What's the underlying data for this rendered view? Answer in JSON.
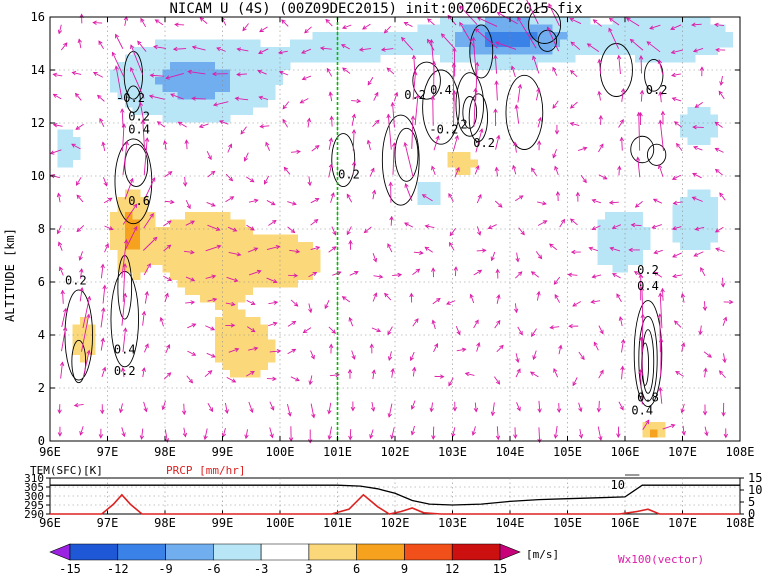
{
  "title": "NICAM U (4S) (00Z09DEC2015) init:00Z06DEC2015 fix",
  "chart_data": [
    {
      "type": "heatmap",
      "panel": "main",
      "ylabel": "ALTITUDE [km]",
      "xlim": [
        96,
        108
      ],
      "ylim": [
        0,
        16
      ],
      "xticks": [
        "96E",
        "97E",
        "98E",
        "99E",
        "100E",
        "101E",
        "102E",
        "103E",
        "104E",
        "105E",
        "106E",
        "107E",
        "108E"
      ],
      "yticks": [
        "0",
        "2",
        "4",
        "6",
        "8",
        "10",
        "12",
        "14",
        "16"
      ],
      "marker_line_lon": 101,
      "marker_line_color": "#00bb00",
      "contour_labels": [
        {
          "text": "0.2",
          "lon": 96.45,
          "alt": 5.9
        },
        {
          "text": "0.4",
          "lon": 97.3,
          "alt": 3.3
        },
        {
          "text": "0.2",
          "lon": 97.3,
          "alt": 2.5
        },
        {
          "text": "0.6",
          "lon": 97.55,
          "alt": 8.9
        },
        {
          "text": "-0.2",
          "lon": 97.4,
          "alt": 12.8
        },
        {
          "text": "0.2",
          "lon": 97.55,
          "alt": 12.1
        },
        {
          "text": "0.4",
          "lon": 97.55,
          "alt": 11.6
        },
        {
          "text": "0.2",
          "lon": 101.2,
          "alt": 9.9
        },
        {
          "text": "0.2",
          "lon": 102.35,
          "alt": 12.9
        },
        {
          "text": "0.4",
          "lon": 102.8,
          "alt": 13.1
        },
        {
          "text": "-0.2",
          "lon": 102.85,
          "alt": 11.6
        },
        {
          "text": "2",
          "lon": 103.2,
          "alt": 11.8
        },
        {
          "text": "0.2",
          "lon": 103.55,
          "alt": 11.1
        },
        {
          "text": "0.2",
          "lon": 106.55,
          "alt": 13.1
        },
        {
          "text": "0.2",
          "lon": 106.4,
          "alt": 6.3
        },
        {
          "text": "0.4",
          "lon": 106.4,
          "alt": 5.7
        },
        {
          "text": "0.8",
          "lon": 106.4,
          "alt": 1.5
        },
        {
          "text": "0.4",
          "lon": 106.3,
          "alt": 1.0
        }
      ],
      "colorbar": {
        "levels": [
          "-15",
          "-12",
          "-9",
          "-6",
          "-3",
          "3",
          "6",
          "9",
          "12",
          "15"
        ],
        "unit": "[m/s]",
        "colors": [
          "#9b22e0",
          "#1f58d6",
          "#3b82e8",
          "#70aef0",
          "#b9e6f7",
          "#ffffff",
          "#fbd97a",
          "#f6a21e",
          "#f2501a",
          "#cc1010",
          "#c8007a"
        ]
      },
      "vector_label": "Wx100(vector)",
      "vector_color": "#dd1aa8"
    },
    {
      "type": "line",
      "panel": "surface",
      "left_label": "TEM(SFC)[K]",
      "right_label": "PRCP [mm/hr]",
      "left_ticks": [
        "290",
        "295",
        "300",
        "305",
        "310"
      ],
      "right_ticks": [
        "0",
        "5",
        "10",
        "15"
      ],
      "xticks": [
        "96E",
        "97E",
        "98E",
        "99E",
        "100E",
        "101E",
        "102E",
        "103E",
        "104E",
        "105E",
        "106E",
        "107E",
        "108E"
      ],
      "xlim": [
        96,
        108
      ],
      "series": [
        {
          "name": "TEM(SFC)[K]",
          "color": "#000000",
          "x": [
            96,
            97,
            98,
            99,
            100,
            100.5,
            101,
            101.4,
            101.7,
            102,
            102.3,
            102.6,
            103,
            103.5,
            104,
            104.5,
            105,
            105.5,
            106,
            106.3,
            107,
            108
          ],
          "y": [
            306,
            306,
            306,
            306,
            306,
            306,
            306,
            305.5,
            304,
            301.5,
            297.5,
            295.5,
            295,
            295.5,
            297,
            298,
            298.5,
            299,
            299.5,
            306,
            306,
            306
          ]
        },
        {
          "name": "PRCP [mm/hr]",
          "color": "#dd2222",
          "x": [
            96,
            96.9,
            97.1,
            97.25,
            97.4,
            97.6,
            98,
            100,
            100.9,
            101.2,
            101.45,
            101.7,
            101.9,
            102.1,
            102.3,
            102.5,
            102.8,
            103,
            105.9,
            106.2,
            106.4,
            106.6,
            107,
            108
          ],
          "y": [
            0,
            0,
            4,
            8,
            4,
            0,
            0,
            0,
            0,
            2,
            8,
            3,
            0,
            1,
            2.5,
            0.5,
            0,
            0,
            0,
            1,
            2,
            0,
            0,
            0
          ]
        }
      ],
      "annotation": "10"
    }
  ]
}
